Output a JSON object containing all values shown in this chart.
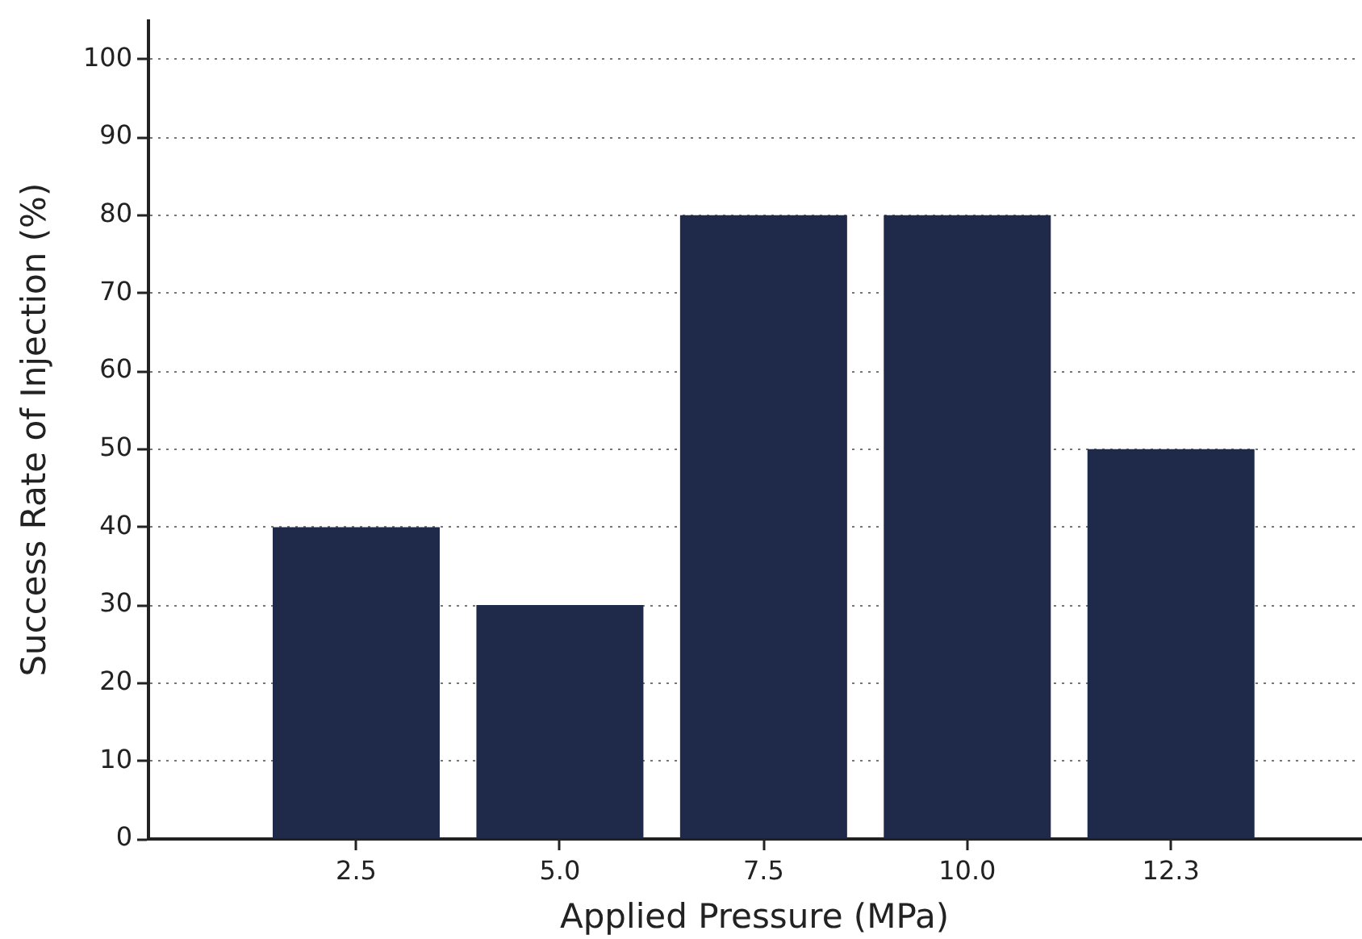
{
  "chart_data": {
    "type": "bar",
    "xlabel": "Applied Pressure (MPa)",
    "ylabel": "Success Rate of Injection (%)",
    "categories": [
      "2.5",
      "5.0",
      "7.5",
      "10.0",
      "12.3"
    ],
    "values": [
      40,
      30,
      80,
      80,
      50
    ],
    "color": "#1f2a4b",
    "ylim": [
      0,
      105
    ],
    "yticks": [
      0,
      10,
      20,
      30,
      40,
      50,
      60,
      70,
      80,
      90,
      100
    ],
    "grid": "y"
  }
}
